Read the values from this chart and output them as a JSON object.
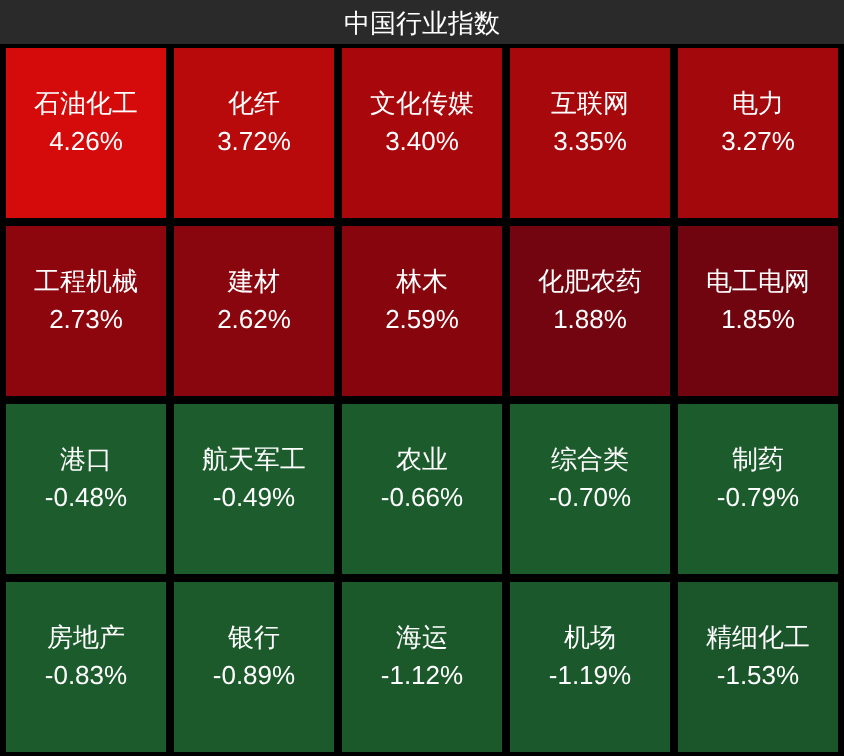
{
  "chart_data": {
    "type": "other",
    "title": "中国行业指数",
    "categories": [
      "石油化工",
      "化纤",
      "文化传媒",
      "互联网",
      "电力",
      "工程机械",
      "建材",
      "林木",
      "化肥农药",
      "电工电网",
      "港口",
      "航天军工",
      "农业",
      "综合类",
      "制药",
      "房地产",
      "银行",
      "海运",
      "机场",
      "精细化工"
    ],
    "values": [
      4.26,
      3.72,
      3.4,
      3.35,
      3.27,
      2.73,
      2.62,
      2.59,
      1.88,
      1.85,
      -0.48,
      -0.49,
      -0.66,
      -0.7,
      -0.79,
      -0.83,
      -0.89,
      -1.12,
      -1.19,
      -1.53
    ],
    "value_labels": [
      "4.26%",
      "3.72%",
      "3.40%",
      "3.35%",
      "3.27%",
      "2.73%",
      "2.62%",
      "2.59%",
      "1.88%",
      "1.85%",
      "-0.48%",
      "-0.49%",
      "-0.66%",
      "-0.70%",
      "-0.79%",
      "-0.83%",
      "-0.89%",
      "-1.12%",
      "-1.19%",
      "-1.53%"
    ]
  }
}
